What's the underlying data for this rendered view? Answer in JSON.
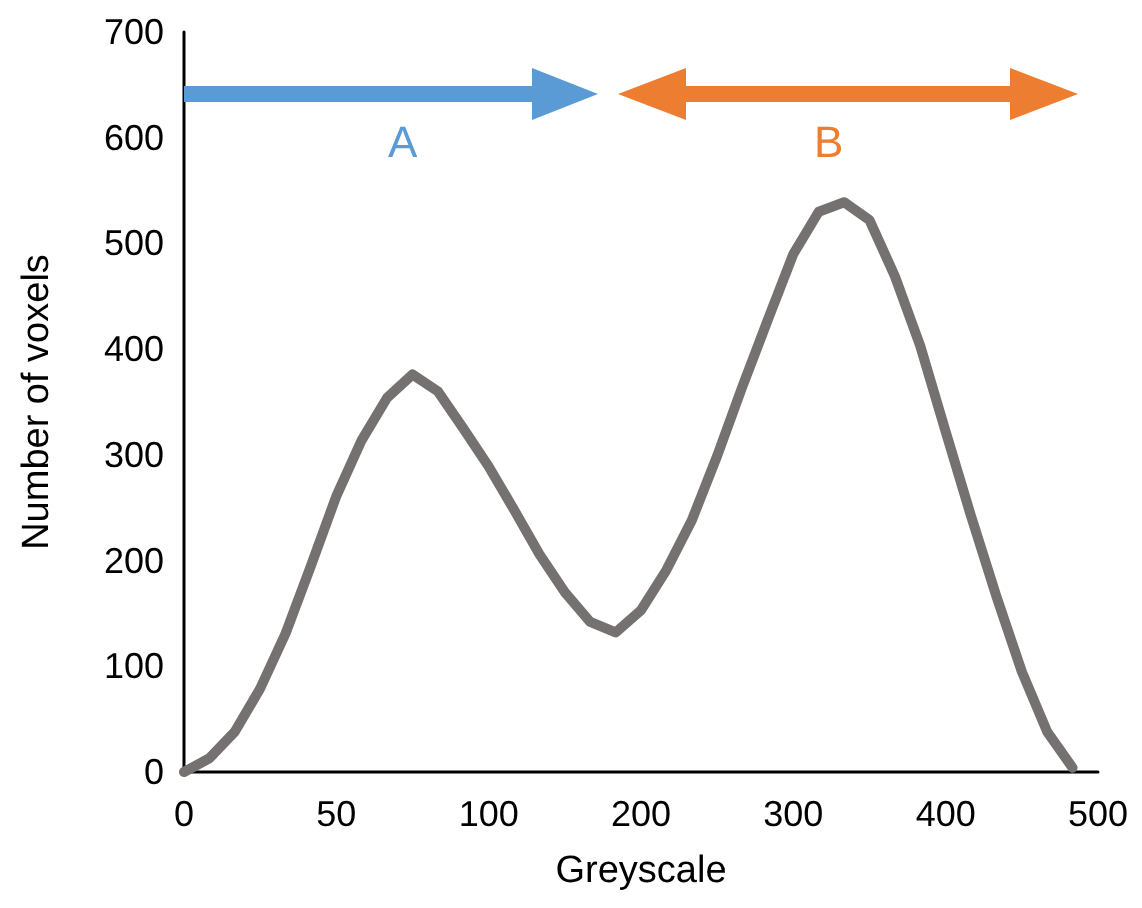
{
  "chart_data": {
    "type": "line",
    "xlabel": "Greyscale",
    "ylabel": "Number of voxels",
    "annotations": [
      "A",
      "B"
    ],
    "categories": [
      "0",
      null,
      null,
      null,
      null,
      null,
      "50",
      null,
      null,
      null,
      null,
      null,
      "100",
      null,
      null,
      null,
      null,
      null,
      "200",
      null,
      null,
      null,
      null,
      null,
      "300",
      null,
      null,
      null,
      null,
      null,
      "400",
      null,
      null,
      null,
      null,
      null,
      "500"
    ],
    "series": [
      {
        "color": "#767171",
        "values": [
          0,
          13,
          38,
          79,
          131,
          195,
          261,
          314,
          354,
          376,
          360,
          325,
          289,
          248,
          206,
          170,
          142,
          132,
          153,
          191,
          238,
          299,
          365,
          428,
          490,
          530,
          539,
          522,
          469,
          403,
          322,
          242,
          166,
          95,
          38,
          4,
          null
        ]
      }
    ],
    "ylim": [
      0,
      700
    ],
    "yticks": [
      0,
      100,
      200,
      300,
      400,
      500,
      600,
      700
    ],
    "grid": false,
    "marker": "none",
    "line_style": "solid"
  }
}
